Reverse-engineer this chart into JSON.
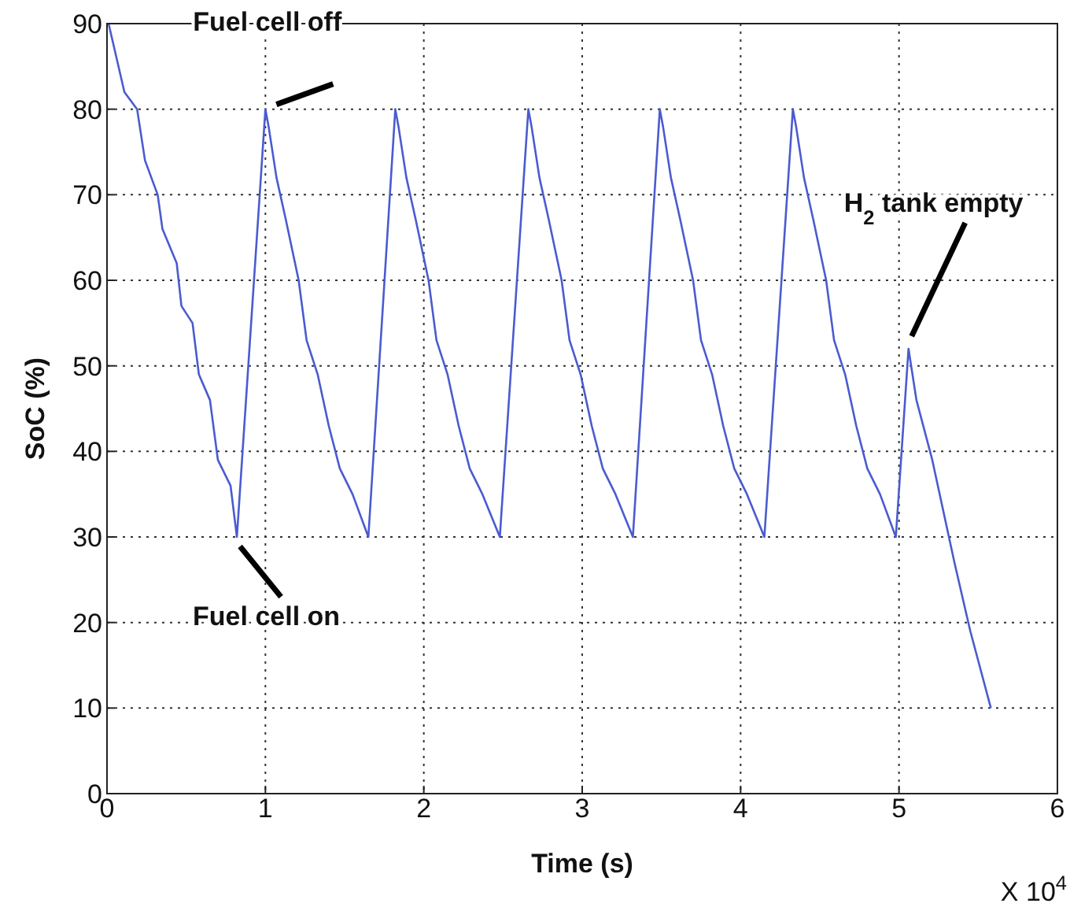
{
  "chart_data": {
    "type": "line",
    "xlabel": "Time (s)",
    "ylabel": "SoC (%)",
    "xlim": [
      0,
      6
    ],
    "xticks": [
      0,
      1,
      2,
      3,
      4,
      5,
      6
    ],
    "ylim": [
      0,
      90
    ],
    "yticks": [
      0,
      10,
      20,
      30,
      40,
      50,
      60,
      70,
      80,
      90
    ],
    "grid": true,
    "line_style": "solid",
    "marker": "none",
    "series": [
      {
        "color": "#4a5bd0",
        "x": [
          0.01,
          0.11,
          0.19,
          0.24,
          0.32,
          0.35,
          0.44,
          0.47,
          0.54,
          0.58,
          0.65,
          0.7,
          0.78,
          0.82,
          1.0,
          1.02,
          1.07,
          1.13,
          1.21,
          1.26,
          1.33,
          1.4,
          1.47,
          1.55,
          1.65,
          1.82,
          1.84,
          1.89,
          1.95,
          2.03,
          2.08,
          2.15,
          2.22,
          2.29,
          2.37,
          2.48,
          2.66,
          2.68,
          2.73,
          2.79,
          2.87,
          2.92,
          2.99,
          3.06,
          3.13,
          3.21,
          3.32,
          3.49,
          3.51,
          3.56,
          3.62,
          3.7,
          3.75,
          3.82,
          3.89,
          3.96,
          4.04,
          4.15,
          4.33,
          4.35,
          4.4,
          4.46,
          4.54,
          4.59,
          4.66,
          4.73,
          4.8,
          4.88,
          4.98,
          5.06,
          5.11,
          5.21,
          5.35,
          5.45,
          5.58
        ],
        "values": [
          90,
          82,
          80,
          74,
          70,
          66,
          62,
          57,
          55,
          49,
          46,
          39,
          36,
          30,
          80,
          78,
          72,
          67,
          60,
          53,
          49,
          43,
          38,
          35,
          30,
          80,
          78,
          72,
          67,
          60,
          53,
          49,
          43,
          38,
          35,
          30,
          80,
          78,
          72,
          67,
          60,
          53,
          49,
          43,
          38,
          35,
          30,
          80,
          78,
          72,
          67,
          60,
          53,
          49,
          43,
          38,
          35,
          30,
          80,
          78,
          72,
          67,
          60,
          53,
          49,
          43,
          38,
          35,
          30,
          52,
          46,
          39,
          27,
          19,
          10
        ]
      }
    ],
    "annotations": [
      {
        "text": "Fuel cell off",
        "x": 1.0,
        "y": 80
      },
      {
        "text": "Fuel cell on",
        "x": 0.82,
        "y": 30
      },
      {
        "text": "H$_{2}$ tank empty",
        "x": 5.06,
        "y": 52
      },
      "X 10$^{4}$"
    ]
  }
}
